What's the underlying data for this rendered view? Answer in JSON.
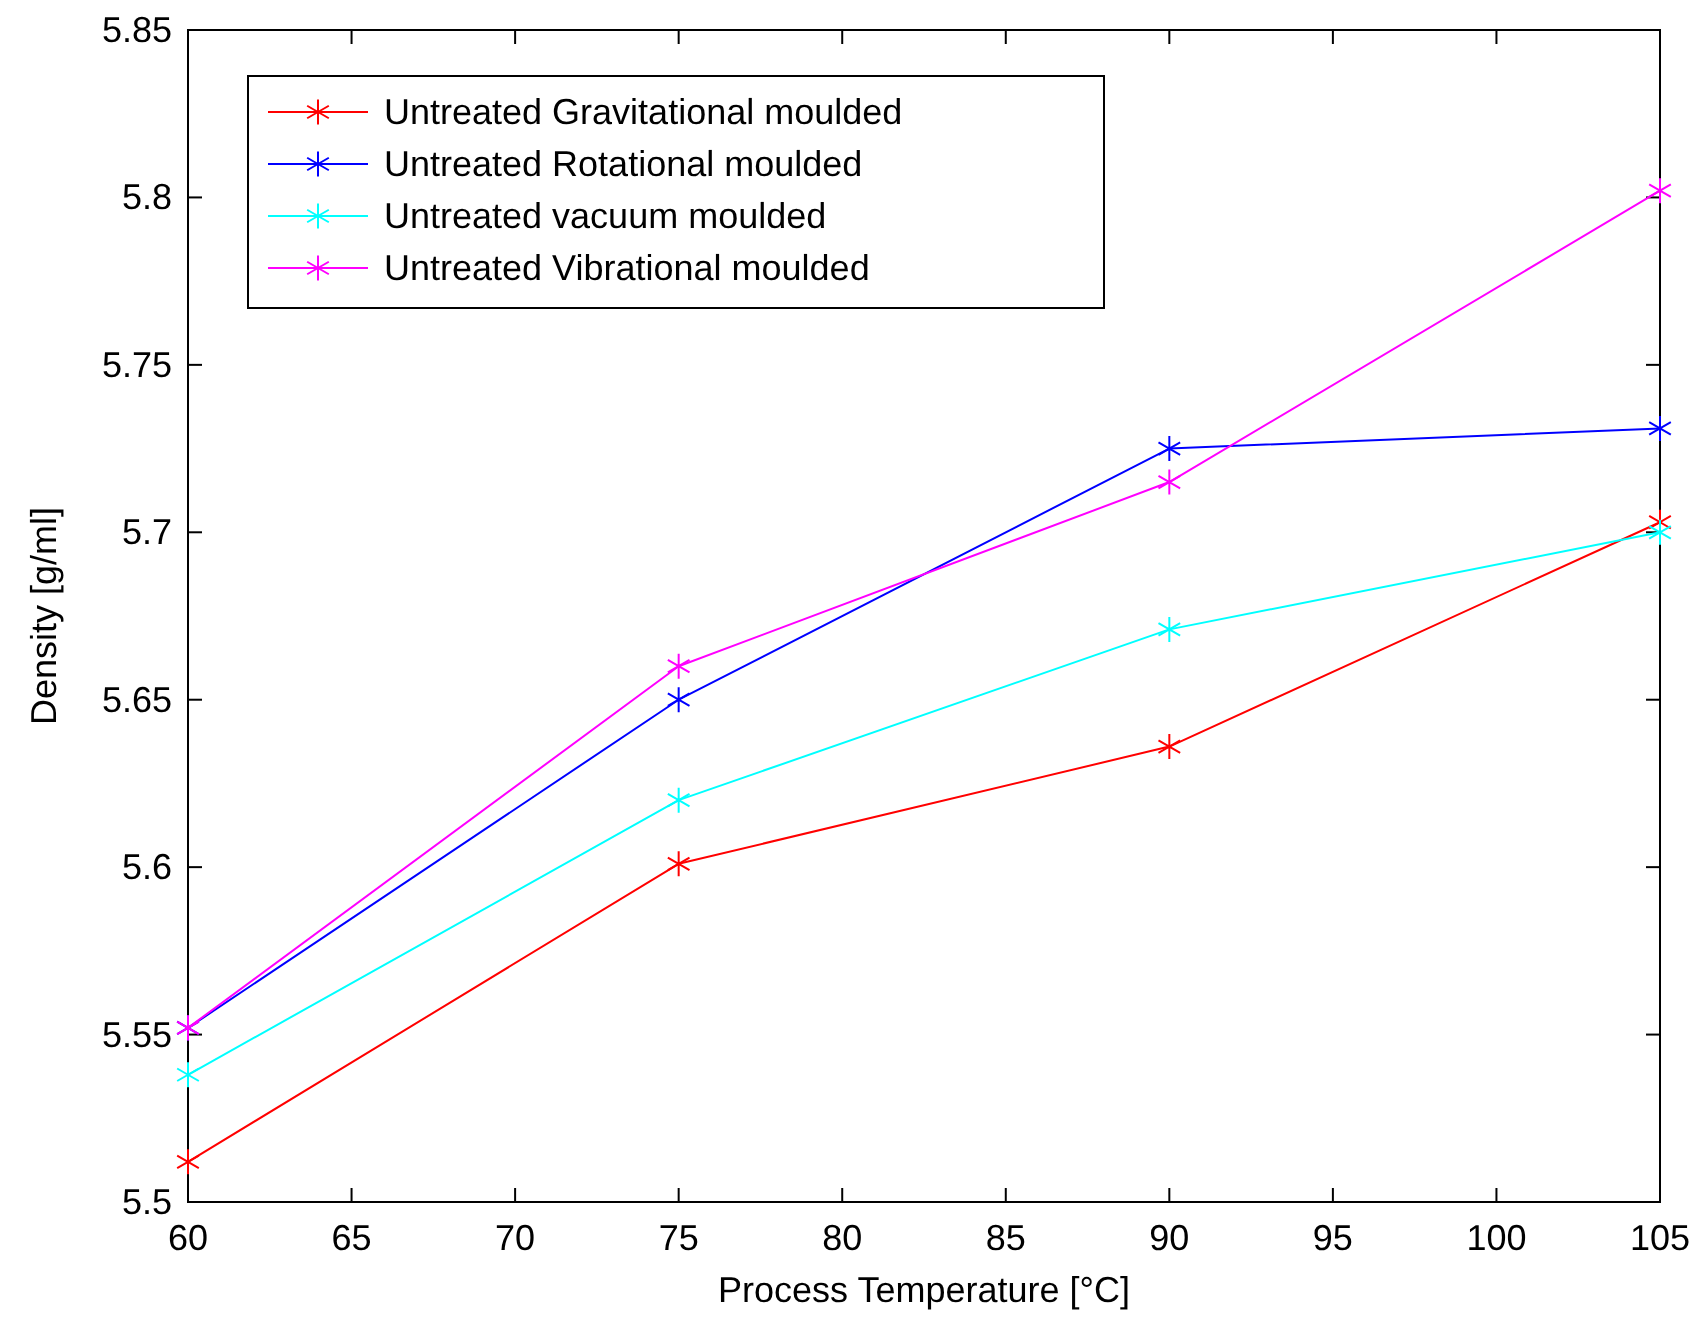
{
  "chart_data": {
    "type": "line",
    "xlabel": "Process Temperature [°C]",
    "ylabel": "Density [g/ml]",
    "x": [
      60,
      75,
      90,
      105
    ],
    "xlim": [
      60,
      105
    ],
    "xticks": [
      60,
      65,
      70,
      75,
      80,
      85,
      90,
      95,
      100,
      105
    ],
    "ylim": [
      5.5,
      5.85
    ],
    "yticks": [
      5.5,
      5.55,
      5.6,
      5.65,
      5.7,
      5.75,
      5.8,
      5.85
    ],
    "series": [
      {
        "name": "Untreated Gravitational moulded",
        "color": "#ff0000",
        "values": [
          5.512,
          5.601,
          5.636,
          5.703
        ]
      },
      {
        "name": "Untreated Rotational moulded",
        "color": "#0000ff",
        "values": [
          5.552,
          5.65,
          5.725,
          5.731
        ]
      },
      {
        "name": "Untreated vacuum moulded",
        "color": "#00ffff",
        "values": [
          5.538,
          5.62,
          5.671,
          5.7
        ]
      },
      {
        "name": "Untreated Vibrational moulded",
        "color": "#ff00ff",
        "values": [
          5.552,
          5.66,
          5.715,
          5.802
        ]
      }
    ],
    "marker": "cross",
    "line_style": "solid",
    "grid": false,
    "legend": "top left"
  }
}
